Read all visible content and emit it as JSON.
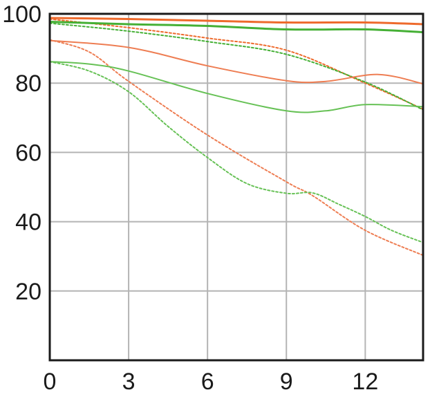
{
  "chart_data": {
    "type": "line",
    "title": "",
    "xlabel": "",
    "ylabel": "",
    "xlim": [
      0,
      14.2
    ],
    "ylim": [
      0,
      100
    ],
    "grid": true,
    "x_ticks": [
      "0",
      "3",
      "6",
      "9",
      "12"
    ],
    "x_tick_values": [
      0,
      3,
      6,
      9,
      12
    ],
    "y_ticks": [
      "20",
      "40",
      "60",
      "80",
      "100"
    ],
    "y_tick_values": [
      20,
      40,
      60,
      80,
      100
    ],
    "series": [
      {
        "color": "#ee6a2c",
        "dash": "solid",
        "width": 3,
        "x": [
          0,
          3,
          6,
          9,
          12,
          14.2
        ],
        "y": [
          98.8,
          98.5,
          98,
          97.5,
          97.5,
          97
        ]
      },
      {
        "color": "#ee6a2c",
        "dash": "dotted",
        "width": 2,
        "x": [
          0,
          3,
          6,
          9,
          12,
          14.2
        ],
        "y": [
          98.5,
          96,
          93,
          89.5,
          80,
          72.5
        ]
      },
      {
        "color": "#45b035",
        "dash": "solid",
        "width": 3,
        "x": [
          0,
          3,
          6,
          9,
          12,
          14.2
        ],
        "y": [
          97.7,
          97,
          96.5,
          95.5,
          95.5,
          94.7
        ]
      },
      {
        "color": "#45b035",
        "dash": "dotted",
        "width": 2,
        "x": [
          0,
          3,
          6,
          9,
          12,
          14.2
        ],
        "y": [
          97.3,
          95,
          92,
          88.3,
          80.3,
          72.3
        ]
      },
      {
        "color": "#ee7d52",
        "dash": "solid",
        "width": 2,
        "x": [
          0,
          3,
          6,
          9,
          10.5,
          12.5,
          14.2
        ],
        "y": [
          92.3,
          90.3,
          85,
          80.7,
          80.5,
          82.5,
          79.8
        ]
      },
      {
        "color": "#ee7d52",
        "dash": "dotted",
        "width": 2,
        "x": [
          0,
          1.5,
          3,
          6,
          9,
          10,
          12,
          14.2
        ],
        "y": [
          92.5,
          89,
          80.5,
          65,
          51.5,
          47.5,
          37.5,
          30.3
        ]
      },
      {
        "color": "#66c155",
        "dash": "solid",
        "width": 2,
        "x": [
          0,
          1.5,
          3,
          6,
          9,
          10.5,
          12,
          14.2
        ],
        "y": [
          86.2,
          85.5,
          83.5,
          77,
          72,
          72,
          73.8,
          73.2
        ]
      },
      {
        "color": "#66c155",
        "dash": "dotted",
        "width": 2,
        "x": [
          0,
          1.5,
          3,
          4.5,
          6,
          7.5,
          9,
          10,
          11,
          12,
          13,
          14.2
        ],
        "y": [
          86.2,
          83.5,
          77.5,
          67.5,
          58.5,
          51,
          48.2,
          48.3,
          45,
          41.5,
          37.5,
          34
        ]
      }
    ]
  }
}
